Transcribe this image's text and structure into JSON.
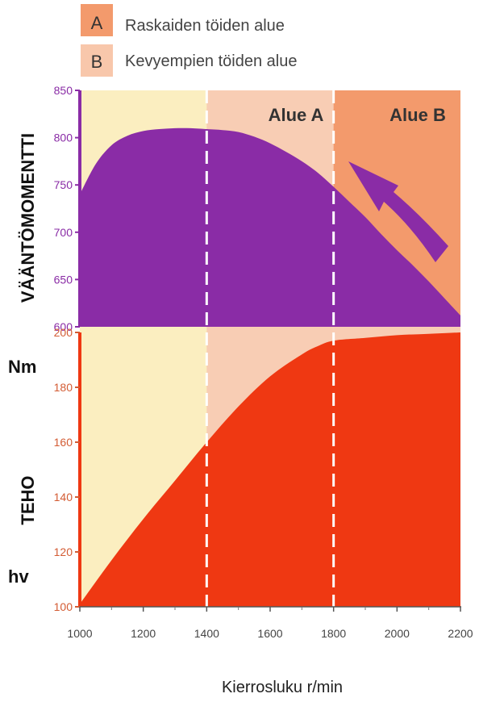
{
  "legend": [
    {
      "key": "A",
      "text": "Raskaiden töiden alue",
      "color": "#f39a6c"
    },
    {
      "key": "B",
      "text": "Kevyempien töiden alue",
      "color": "#f8c7ab"
    }
  ],
  "region_labels": {
    "a": "Alue A",
    "b": "Alue B"
  },
  "xlabel": "Kierrosluku r/min",
  "colors": {
    "background": "#fbeec0",
    "zone_a": "#f8cdb4",
    "zone_b": "#f39a6c",
    "torque": "#8a2ca6",
    "power": "#ef3812",
    "divider": "#ffffff"
  },
  "chart_data": [
    {
      "type": "area",
      "ylabel": "VÄÄNTÖMOMENTTI",
      "yunit": "Nm",
      "xlim": [
        1000,
        2200
      ],
      "ylim": [
        600,
        850
      ],
      "xticks": [
        1000,
        1200,
        1400,
        1600,
        1800,
        2000,
        2200
      ],
      "yticks": [
        600,
        650,
        700,
        750,
        800,
        850
      ],
      "series": [
        {
          "x": [
            1000,
            1050,
            1100,
            1150,
            1200,
            1250,
            1300,
            1350,
            1400,
            1450,
            1500,
            1550,
            1600,
            1650,
            1700,
            1750,
            1800,
            1850,
            1900,
            1950,
            2000,
            2050,
            2100,
            2150,
            2200
          ],
          "values": [
            740,
            772,
            792,
            802,
            807,
            809,
            810,
            810,
            809,
            808,
            806,
            801,
            794,
            785,
            775,
            763,
            748,
            732,
            716,
            698,
            681,
            665,
            648,
            630,
            612
          ]
        }
      ],
      "grid": false
    },
    {
      "type": "area",
      "ylabel": "TEHO",
      "yunit": "hv",
      "xlim": [
        1000,
        2200
      ],
      "ylim": [
        100,
        200
      ],
      "xticks": [
        1000,
        1200,
        1400,
        1600,
        1800,
        2000,
        2200
      ],
      "yticks": [
        100,
        120,
        140,
        160,
        180,
        200
      ],
      "series": [
        {
          "x": [
            1000,
            1100,
            1200,
            1300,
            1400,
            1500,
            1600,
            1700,
            1750,
            1800,
            1900,
            2000,
            2100,
            2200
          ],
          "values": [
            101,
            117,
            132,
            146,
            160,
            173,
            184,
            192,
            195,
            197,
            198,
            199,
            199.5,
            200
          ]
        }
      ],
      "grid": false
    }
  ],
  "zones": {
    "dividers": [
      1400,
      1800
    ],
    "zone_b_start": 1800
  }
}
